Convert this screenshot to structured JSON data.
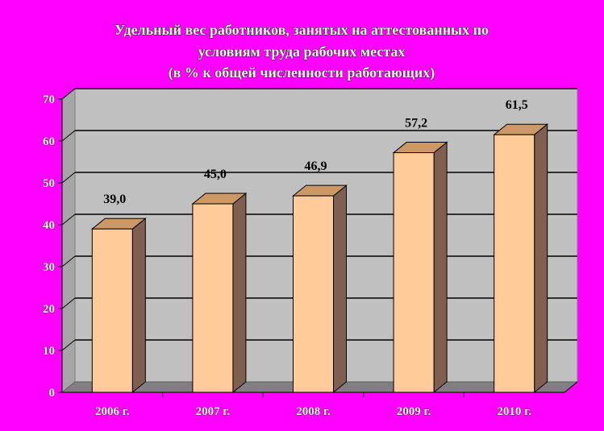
{
  "chart_data": {
    "type": "bar",
    "title_lines": [
      "Удельный вес работников, занятых на аттестованных по",
      "условиям труда рабочих местах",
      "(в % к общей численности работающих)"
    ],
    "categories": [
      "2006 г.",
      "2007 г.",
      "2008 г.",
      "2009 г.",
      "2010 г."
    ],
    "values": [
      39.0,
      45.0,
      46.9,
      57.2,
      61.5
    ],
    "data_labels": [
      "39,0",
      "45,0",
      "46,9",
      "57,2",
      "61,5"
    ],
    "y_ticks": [
      0,
      10,
      20,
      30,
      40,
      50,
      60,
      70
    ],
    "ylim": [
      0,
      70
    ],
    "xlabel": "",
    "ylabel": "",
    "grid": true,
    "three_d": true,
    "legend": "none"
  },
  "colors": {
    "background": "#FF00FF",
    "plot_wall": "#C0C0C0",
    "plot_floor": "#808080",
    "side_wall": "#A6A6A6",
    "bar_front": "#FFCC99",
    "bar_top": "#CC9966",
    "bar_side": "#7F6050",
    "gridline": "#000000",
    "text_outline": "#000000",
    "text_fill": "#FFFFFF"
  }
}
